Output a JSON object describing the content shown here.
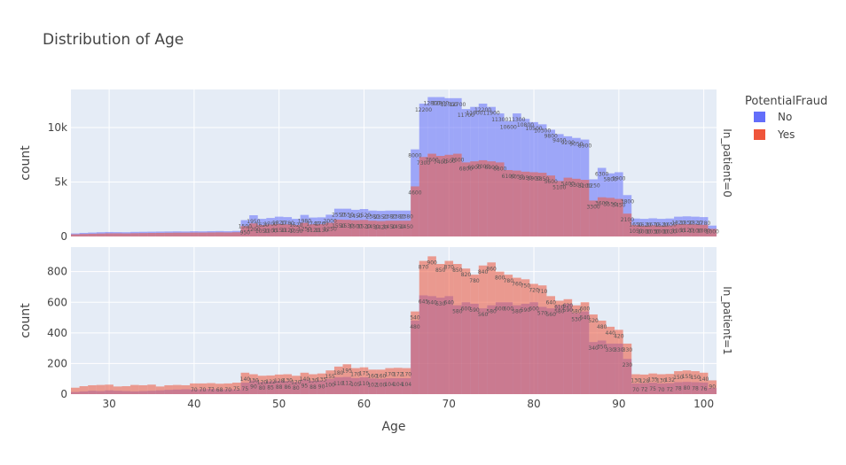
{
  "chart_data": {
    "type": "bar",
    "title": "Distribution of Age",
    "xlabel": "Age",
    "ylabel": "count",
    "barmode": "overlay",
    "xlim": [
      25.5,
      101.5
    ],
    "x_ticks": [
      30,
      40,
      50,
      60,
      70,
      80,
      90,
      100
    ],
    "x_tick_labels": [
      "30",
      "40",
      "50",
      "60",
      "70",
      "80",
      "90",
      "100"
    ],
    "legend": {
      "title": "PotentialFraud",
      "position": "top-right"
    },
    "colors": {
      "No": "#636efa",
      "Yes": "#ef553b",
      "plot_bg": "#e5ecf6"
    },
    "facets": [
      {
        "label": "In_patient=0",
        "ylim": [
          0,
          13500
        ],
        "y_ticks": [
          0,
          5000,
          10000
        ],
        "y_tick_labels": [
          "0",
          "5k",
          "10k"
        ],
        "series": [
          {
            "name": "No",
            "x": [
              26,
              27,
              28,
              29,
              30,
              31,
              32,
              33,
              34,
              35,
              36,
              37,
              38,
              39,
              40,
              41,
              42,
              43,
              44,
              45,
              46,
              47,
              48,
              49,
              50,
              51,
              52,
              53,
              54,
              55,
              56,
              57,
              58,
              59,
              60,
              61,
              62,
              63,
              64,
              65,
              66,
              67,
              68,
              69,
              70,
              71,
              72,
              73,
              74,
              75,
              76,
              77,
              78,
              79,
              80,
              81,
              82,
              83,
              84,
              85,
              86,
              87,
              88,
              89,
              90,
              91,
              92,
              93,
              94,
              95,
              96,
              97,
              98,
              99,
              100,
              101
            ],
            "values": [
              280,
              330,
              360,
              390,
              410,
              400,
              390,
              420,
              430,
              440,
              450,
              460,
              470,
              460,
              480,
              470,
              490,
              500,
              480,
              510,
              1500,
              1950,
              1620,
              1700,
              1820,
              1780,
              1620,
              1980,
              1740,
              1760,
              2000,
              2550,
              2550,
              2450,
              2520,
              2380,
              2350,
              2380,
              2380,
              2380,
              8000,
              12200,
              12800,
              12800,
              12700,
              12700,
              11700,
              11900,
              12200,
              11900,
              11300,
              10600,
              11300,
              10800,
              10500,
              10300,
              9800,
              9400,
              9200,
              9050,
              8900,
              5250,
              6300,
              5800,
              5900,
              3800,
              1650,
              1620,
              1670,
              1620,
              1650,
              1820,
              1850,
              1820,
              1780,
              1000
            ]
          },
          {
            "name": "Yes",
            "x": [
              26,
              27,
              28,
              29,
              30,
              31,
              32,
              33,
              34,
              35,
              36,
              37,
              38,
              39,
              40,
              41,
              42,
              43,
              44,
              45,
              46,
              47,
              48,
              49,
              50,
              51,
              52,
              53,
              54,
              55,
              56,
              57,
              58,
              59,
              60,
              61,
              62,
              63,
              64,
              65,
              66,
              67,
              68,
              69,
              70,
              71,
              72,
              73,
              74,
              75,
              76,
              77,
              78,
              79,
              80,
              81,
              82,
              83,
              84,
              85,
              86,
              87,
              88,
              89,
              90,
              91,
              92,
              93,
              94,
              95,
              96,
              97,
              98,
              99,
              100,
              101
            ],
            "values": [
              200,
              230,
              250,
              270,
              290,
              290,
              280,
              300,
              310,
              320,
              330,
              340,
              350,
              350,
              360,
              360,
              370,
              380,
              370,
              390,
              950,
              1200,
              1050,
              1100,
              1150,
              1120,
              1050,
              1250,
              1120,
              1130,
              1250,
              1550,
              1530,
              1500,
              1520,
              1450,
              1420,
              1450,
              1450,
              1450,
              4600,
              7300,
              7600,
              7400,
              7500,
              7600,
              6800,
              6900,
              7000,
              6900,
              6800,
              6100,
              6050,
              5950,
              5900,
              5850,
              5600,
              5100,
              5400,
              5300,
              5200,
              3300,
              3600,
              3550,
              3450,
              2100,
              1050,
              1000,
              1030,
              1000,
              1020,
              1100,
              1120,
              1100,
              1080,
              700
            ]
          }
        ]
      },
      {
        "label": "In_patient=1",
        "ylim": [
          0,
          960
        ],
        "y_ticks": [
          0,
          200,
          400,
          600,
          800
        ],
        "y_tick_labels": [
          "0",
          "200",
          "400",
          "600",
          "800"
        ],
        "series": [
          {
            "name": "No",
            "x": [
              26,
              27,
              28,
              29,
              30,
              31,
              32,
              33,
              34,
              35,
              36,
              37,
              38,
              39,
              40,
              41,
              42,
              43,
              44,
              45,
              46,
              47,
              48,
              49,
              50,
              51,
              52,
              53,
              54,
              55,
              56,
              57,
              58,
              59,
              60,
              61,
              62,
              63,
              64,
              65,
              66,
              67,
              68,
              69,
              70,
              71,
              72,
              73,
              74,
              75,
              76,
              77,
              78,
              79,
              80,
              81,
              82,
              83,
              84,
              85,
              86,
              87,
              88,
              89,
              90,
              91,
              92,
              93,
              94,
              95,
              96,
              97,
              98,
              99,
              100,
              101
            ],
            "values": [
              14,
              18,
              22,
              20,
              25,
              22,
              20,
              18,
              20,
              22,
              25,
              28,
              30,
              32,
              30,
              32,
              34,
              30,
              32,
              30,
              75,
              90,
              80,
              85,
              88,
              86,
              80,
              95,
              88,
              90,
              100,
              110,
              112,
              105,
              110,
              102,
              100,
              104,
              104,
              104,
              480,
              645,
              640,
              630,
              640,
              580,
              600,
              590,
              560,
              580,
              600,
              600,
              580,
              590,
              600,
              570,
              560,
              580,
              590,
              530,
              540,
              340,
              350,
              330,
              330,
              230,
              70,
              72,
              75,
              70,
              72,
              78,
              80,
              78,
              76,
              40
            ]
          },
          {
            "name": "Yes",
            "x": [
              26,
              27,
              28,
              29,
              30,
              31,
              32,
              33,
              34,
              35,
              36,
              37,
              38,
              39,
              40,
              41,
              42,
              43,
              44,
              45,
              46,
              47,
              48,
              49,
              50,
              51,
              52,
              53,
              54,
              55,
              56,
              57,
              58,
              59,
              60,
              61,
              62,
              63,
              64,
              65,
              66,
              67,
              68,
              69,
              70,
              71,
              72,
              73,
              74,
              75,
              76,
              77,
              78,
              79,
              80,
              81,
              82,
              83,
              84,
              85,
              86,
              87,
              88,
              89,
              90,
              91,
              92,
              93,
              94,
              95,
              96,
              97,
              98,
              99,
              100,
              101
            ],
            "values": [
              42,
              52,
              58,
              60,
              62,
              50,
              52,
              60,
              58,
              62,
              50,
              58,
              60,
              58,
              70,
              70,
              72,
              68,
              70,
              75,
              140,
              130,
              120,
              122,
              128,
              130,
              120,
              140,
              130,
              135,
              155,
              180,
              195,
              170,
              175,
              160,
              160,
              170,
              172,
              170,
              540,
              870,
              900,
              850,
              870,
              850,
              820,
              780,
              840,
              860,
              800,
              780,
              760,
              750,
              720,
              710,
              640,
              610,
              620,
              580,
              600,
              520,
              480,
              440,
              420,
              330,
              130,
              128,
              135,
              130,
              132,
              150,
              155,
              150,
              140,
              90
            ]
          }
        ]
      }
    ]
  }
}
